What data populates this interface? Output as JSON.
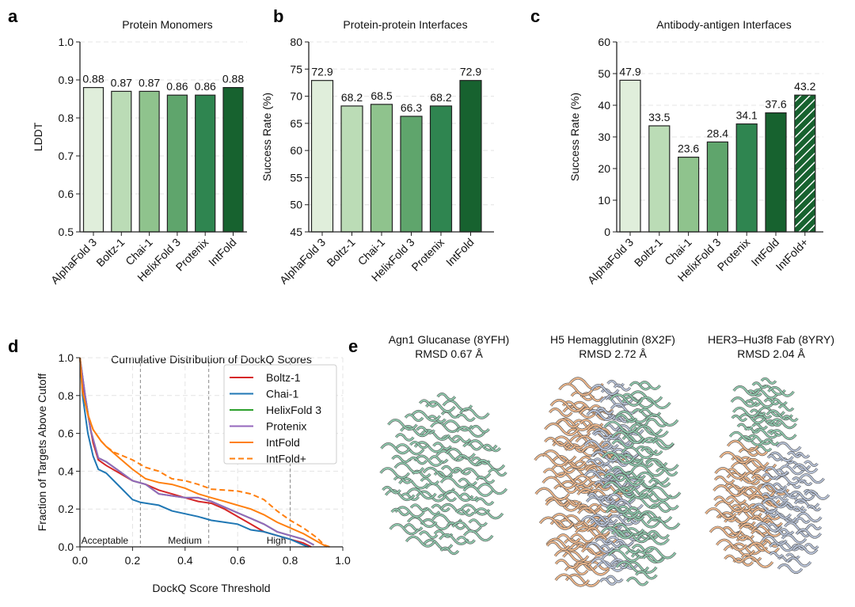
{
  "panel_labels": [
    "a",
    "b",
    "c",
    "d",
    "e"
  ],
  "chart_data": [
    {
      "type": "bar",
      "title": "Protein Monomers",
      "ylabel": "LDDT",
      "xlabel": "",
      "ylim": [
        0.5,
        1.0
      ],
      "yticks": [
        "0.5",
        "0.6",
        "0.7",
        "0.8",
        "0.9",
        "1.0"
      ],
      "categories": [
        "AlphaFold 3",
        "Boltz-1",
        "Chai-1",
        "HelixFold 3",
        "Protenix",
        "IntFold"
      ],
      "values": [
        0.88,
        0.87,
        0.87,
        0.86,
        0.86,
        0.88
      ],
      "labels": [
        "0.88",
        "0.87",
        "0.87",
        "0.86",
        "0.86",
        "0.88"
      ],
      "colors": [
        "#e0eedb",
        "#bbdcb6",
        "#8fc38d",
        "#5fa56c",
        "#2f8550",
        "#17622f"
      ],
      "grid": "horizontal dashed"
    },
    {
      "type": "bar",
      "title": "Protein-protein Interfaces",
      "ylabel": "Success Rate (%)",
      "xlabel": "",
      "ylim": [
        45,
        80
      ],
      "yticks": [
        "45",
        "50",
        "55",
        "60",
        "65",
        "70",
        "75",
        "80"
      ],
      "categories": [
        "AlphaFold 3",
        "Boltz-1",
        "Chai-1",
        "HelixFold 3",
        "Protenix",
        "IntFold"
      ],
      "values": [
        72.9,
        68.2,
        68.5,
        66.3,
        68.2,
        72.9
      ],
      "labels": [
        "72.9",
        "68.2",
        "68.5",
        "66.3",
        "68.2",
        "72.9"
      ],
      "colors": [
        "#e0eedb",
        "#bbdcb6",
        "#8fc38d",
        "#5fa56c",
        "#2f8550",
        "#17622f"
      ],
      "grid": "horizontal dashed"
    },
    {
      "type": "bar",
      "title": "Antibody-antigen Interfaces",
      "ylabel": "Success Rate (%)",
      "xlabel": "",
      "ylim": [
        0,
        60
      ],
      "yticks": [
        "0",
        "10",
        "20",
        "30",
        "40",
        "50",
        "60"
      ],
      "categories": [
        "AlphaFold 3",
        "Boltz-1",
        "Chai-1",
        "HelixFold 3",
        "Protenix",
        "IntFold",
        "IntFold+"
      ],
      "values": [
        47.9,
        33.5,
        23.6,
        28.4,
        34.1,
        37.6,
        43.2
      ],
      "labels": [
        "47.9",
        "33.5",
        "23.6",
        "28.4",
        "34.1",
        "37.6",
        "43.2"
      ],
      "colors": [
        "#e0eedb",
        "#bbdcb6",
        "#8fc38d",
        "#5fa56c",
        "#2f8550",
        "#17622f",
        "#17622f"
      ],
      "hatched": [
        false,
        false,
        false,
        false,
        false,
        false,
        true
      ],
      "grid": "horizontal dashed"
    },
    {
      "type": "line",
      "title": "Cumulative Distribution of DockQ Scores",
      "xlabel": "DockQ Score Threshold",
      "ylabel": "Fraction of Targets Above Cutoff",
      "xlim": [
        0,
        1
      ],
      "ylim": [
        0,
        1
      ],
      "xticks": [
        "0.0",
        "0.2",
        "0.4",
        "0.6",
        "0.8",
        "1.0"
      ],
      "yticks": [
        "0.0",
        "0.2",
        "0.4",
        "0.6",
        "0.8",
        "1.0"
      ],
      "legend": "top-right",
      "grid": "dashed",
      "thresholds": [
        {
          "x": 0.23,
          "label": "Acceptable"
        },
        {
          "x": 0.49,
          "label": "Medium"
        },
        {
          "x": 0.8,
          "label": "High"
        }
      ],
      "series": [
        {
          "name": "Boltz-1",
          "color": "#d62728",
          "dash": false,
          "points": [
            [
              0,
              1
            ],
            [
              0.01,
              0.85
            ],
            [
              0.03,
              0.7
            ],
            [
              0.05,
              0.55
            ],
            [
              0.07,
              0.46
            ],
            [
              0.1,
              0.43
            ],
            [
              0.15,
              0.39
            ],
            [
              0.2,
              0.35
            ],
            [
              0.25,
              0.33
            ],
            [
              0.3,
              0.3
            ],
            [
              0.35,
              0.28
            ],
            [
              0.4,
              0.26
            ],
            [
              0.45,
              0.24
            ],
            [
              0.5,
              0.23
            ],
            [
              0.55,
              0.2
            ],
            [
              0.6,
              0.16
            ],
            [
              0.65,
              0.12
            ],
            [
              0.7,
              0.08
            ],
            [
              0.75,
              0.06
            ],
            [
              0.8,
              0.04
            ],
            [
              0.85,
              0.02
            ],
            [
              0.88,
              0
            ]
          ]
        },
        {
          "name": "Chai-1",
          "color": "#1f77b4",
          "dash": false,
          "points": [
            [
              0,
              1
            ],
            [
              0.01,
              0.8
            ],
            [
              0.03,
              0.6
            ],
            [
              0.05,
              0.48
            ],
            [
              0.07,
              0.41
            ],
            [
              0.1,
              0.39
            ],
            [
              0.15,
              0.32
            ],
            [
              0.2,
              0.25
            ],
            [
              0.23,
              0.235
            ],
            [
              0.3,
              0.22
            ],
            [
              0.35,
              0.19
            ],
            [
              0.4,
              0.175
            ],
            [
              0.45,
              0.16
            ],
            [
              0.5,
              0.14
            ],
            [
              0.55,
              0.13
            ],
            [
              0.6,
              0.12
            ],
            [
              0.65,
              0.09
            ],
            [
              0.7,
              0.08
            ],
            [
              0.75,
              0.06
            ],
            [
              0.8,
              0.04
            ],
            [
              0.85,
              0.01
            ],
            [
              0.87,
              0
            ]
          ]
        },
        {
          "name": "HelixFold 3",
          "color": "#2ca02c",
          "dash": false,
          "points": [
            [
              0,
              1
            ],
            [
              0.02,
              0.8
            ],
            [
              0.04,
              0.62
            ],
            [
              0.07,
              0.47
            ],
            [
              0.1,
              0.45
            ],
            [
              0.15,
              0.4
            ],
            [
              0.2,
              0.35
            ],
            [
              0.25,
              0.33
            ],
            [
              0.3,
              0.28
            ],
            [
              0.35,
              0.27
            ],
            [
              0.4,
              0.26
            ],
            [
              0.45,
              0.26
            ],
            [
              0.5,
              0.24
            ],
            [
              0.55,
              0.21
            ],
            [
              0.6,
              0.18
            ],
            [
              0.65,
              0.15
            ],
            [
              0.7,
              0.12
            ],
            [
              0.75,
              0.08
            ],
            [
              0.8,
              0.06
            ],
            [
              0.85,
              0.04
            ],
            [
              0.89,
              0.01
            ]
          ]
        },
        {
          "name": "Protenix",
          "color": "#9467bd",
          "dash": false,
          "points": [
            [
              0,
              1
            ],
            [
              0.02,
              0.8
            ],
            [
              0.04,
              0.62
            ],
            [
              0.07,
              0.47
            ],
            [
              0.1,
              0.45
            ],
            [
              0.15,
              0.4
            ],
            [
              0.2,
              0.35
            ],
            [
              0.25,
              0.33
            ],
            [
              0.3,
              0.28
            ],
            [
              0.35,
              0.27
            ],
            [
              0.4,
              0.26
            ],
            [
              0.45,
              0.26
            ],
            [
              0.5,
              0.24
            ],
            [
              0.55,
              0.21
            ],
            [
              0.6,
              0.18
            ],
            [
              0.65,
              0.15
            ],
            [
              0.7,
              0.12
            ],
            [
              0.75,
              0.08
            ],
            [
              0.8,
              0.06
            ],
            [
              0.85,
              0.04
            ],
            [
              0.89,
              0.01
            ]
          ]
        },
        {
          "name": "IntFold",
          "color": "#ff7f0e",
          "dash": false,
          "points": [
            [
              0,
              1
            ],
            [
              0.01,
              0.82
            ],
            [
              0.03,
              0.7
            ],
            [
              0.05,
              0.62
            ],
            [
              0.08,
              0.56
            ],
            [
              0.1,
              0.53
            ],
            [
              0.15,
              0.47
            ],
            [
              0.2,
              0.41
            ],
            [
              0.25,
              0.36
            ],
            [
              0.3,
              0.34
            ],
            [
              0.35,
              0.33
            ],
            [
              0.4,
              0.31
            ],
            [
              0.45,
              0.28
            ],
            [
              0.5,
              0.26
            ],
            [
              0.55,
              0.24
            ],
            [
              0.6,
              0.22
            ],
            [
              0.65,
              0.2
            ],
            [
              0.7,
              0.17
            ],
            [
              0.75,
              0.13
            ],
            [
              0.8,
              0.1
            ],
            [
              0.85,
              0.07
            ],
            [
              0.9,
              0.03
            ],
            [
              0.94,
              0
            ]
          ]
        },
        {
          "name": "IntFold+",
          "color": "#ff7f0e",
          "dash": true,
          "points": [
            [
              0,
              1
            ],
            [
              0.01,
              0.82
            ],
            [
              0.03,
              0.7
            ],
            [
              0.05,
              0.62
            ],
            [
              0.08,
              0.56
            ],
            [
              0.1,
              0.53
            ],
            [
              0.13,
              0.5
            ],
            [
              0.2,
              0.46
            ],
            [
              0.25,
              0.42
            ],
            [
              0.3,
              0.4
            ],
            [
              0.35,
              0.36
            ],
            [
              0.4,
              0.35
            ],
            [
              0.45,
              0.33
            ],
            [
              0.5,
              0.305
            ],
            [
              0.55,
              0.3
            ],
            [
              0.6,
              0.295
            ],
            [
              0.65,
              0.28
            ],
            [
              0.7,
              0.25
            ],
            [
              0.75,
              0.19
            ],
            [
              0.8,
              0.14
            ],
            [
              0.85,
              0.1
            ],
            [
              0.9,
              0.05
            ],
            [
              0.93,
              0.01
            ],
            [
              0.95,
              0
            ]
          ]
        }
      ]
    }
  ],
  "structures": [
    {
      "title": "Agn1 Glucanase (8YFH)",
      "rmsd": "RMSD 0.67 Å"
    },
    {
      "title": "H5 Hemagglutinin (8X2F)",
      "rmsd": "RMSD 2.72 Å"
    },
    {
      "title": "HER3–Hu3f8 Fab (8YRY)",
      "rmsd": "RMSD 2.04 Å"
    }
  ],
  "structure_colors": {
    "chain_green": "#8fc9ad",
    "chain_peach": "#efb88c",
    "chain_blue": "#b8c3d8",
    "reference": "#555555"
  }
}
